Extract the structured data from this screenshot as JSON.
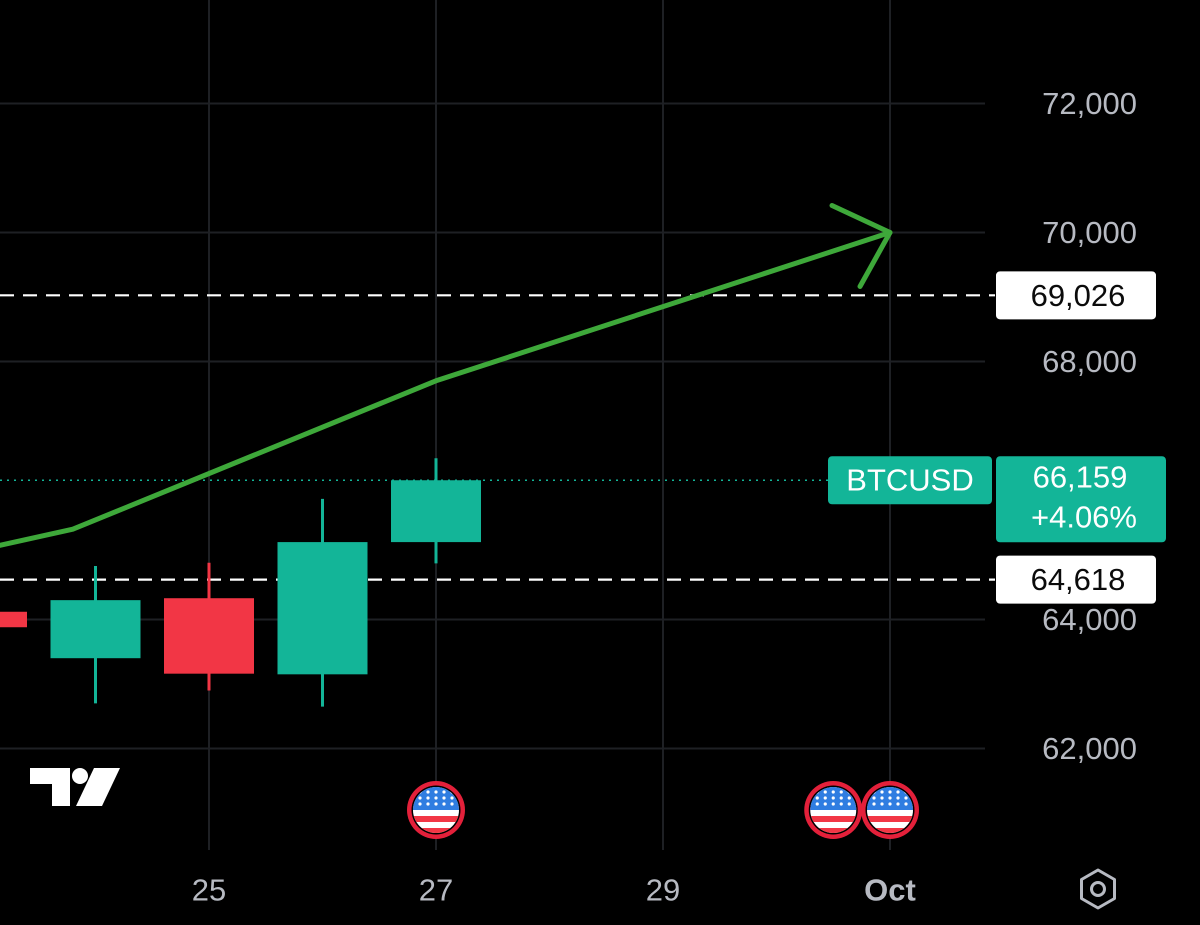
{
  "chart_data": {
    "type": "candlestick",
    "symbol": "BTCUSD",
    "last_price": "66,159",
    "change_percent": "+4.06%",
    "y_axis": {
      "range": [
        60500,
        73500
      ],
      "ticks": [
        62000,
        64000,
        68000,
        70000,
        72000
      ],
      "tick_labels": [
        "62,000",
        "64,000",
        "68,000",
        "70,000",
        "72,000"
      ]
    },
    "x_axis": {
      "ticks": [
        {
          "label": "25",
          "day": 25,
          "bold": false
        },
        {
          "label": "27",
          "day": 27,
          "bold": false
        },
        {
          "label": "29",
          "day": 29,
          "bold": false
        },
        {
          "label": "Oct",
          "day": 31,
          "bold": true
        }
      ]
    },
    "candles": [
      {
        "day": 23,
        "open": 64120,
        "close": 63880,
        "high": 64120,
        "low": 63880,
        "direction": "down"
      },
      {
        "day": 24,
        "open": 63400,
        "close": 64300,
        "high": 64830,
        "low": 62700,
        "direction": "up"
      },
      {
        "day": 25,
        "open": 64330,
        "close": 63160,
        "high": 64880,
        "low": 62900,
        "direction": "down"
      },
      {
        "day": 26,
        "open": 63150,
        "close": 65200,
        "high": 65870,
        "low": 62650,
        "direction": "up"
      },
      {
        "day": 27,
        "open": 65200,
        "close": 66159,
        "high": 66500,
        "low": 64870,
        "direction": "up"
      }
    ],
    "horizontal_lines": [
      {
        "label": "69,026",
        "price": 69026,
        "style": "dashed"
      },
      {
        "label": "64,618",
        "price": 64618,
        "style": "dashed"
      }
    ],
    "price_line": {
      "price": 66159,
      "style": "dotted"
    },
    "trend_arrow": {
      "points": [
        {
          "day": 22.0,
          "price": 64700
        },
        {
          "day": 23.8,
          "price": 65400
        },
        {
          "day": 27.0,
          "price": 67700
        },
        {
          "day": 31.0,
          "price": 70000
        }
      ]
    },
    "event_markers": [
      {
        "day": 27,
        "icon": "us-flag-icon"
      },
      {
        "day": 30.5,
        "icon": "us-flag-icon"
      },
      {
        "day": 31,
        "icon": "us-flag-icon"
      }
    ],
    "colors": {
      "up": "#13b598",
      "down": "#f23645",
      "trend_arrow": "#3ea83a",
      "background": "#000000",
      "grid": "#1e2024",
      "axis_text": "#b7bac2",
      "label_box": "#ffffff",
      "price_box": "#13b598",
      "flag_ring": "#e3203a"
    },
    "grid": true
  },
  "branding": {
    "logo_icon": "tradingview-logo-icon"
  },
  "controls": {
    "settings_icon": "settings-gear-icon"
  }
}
